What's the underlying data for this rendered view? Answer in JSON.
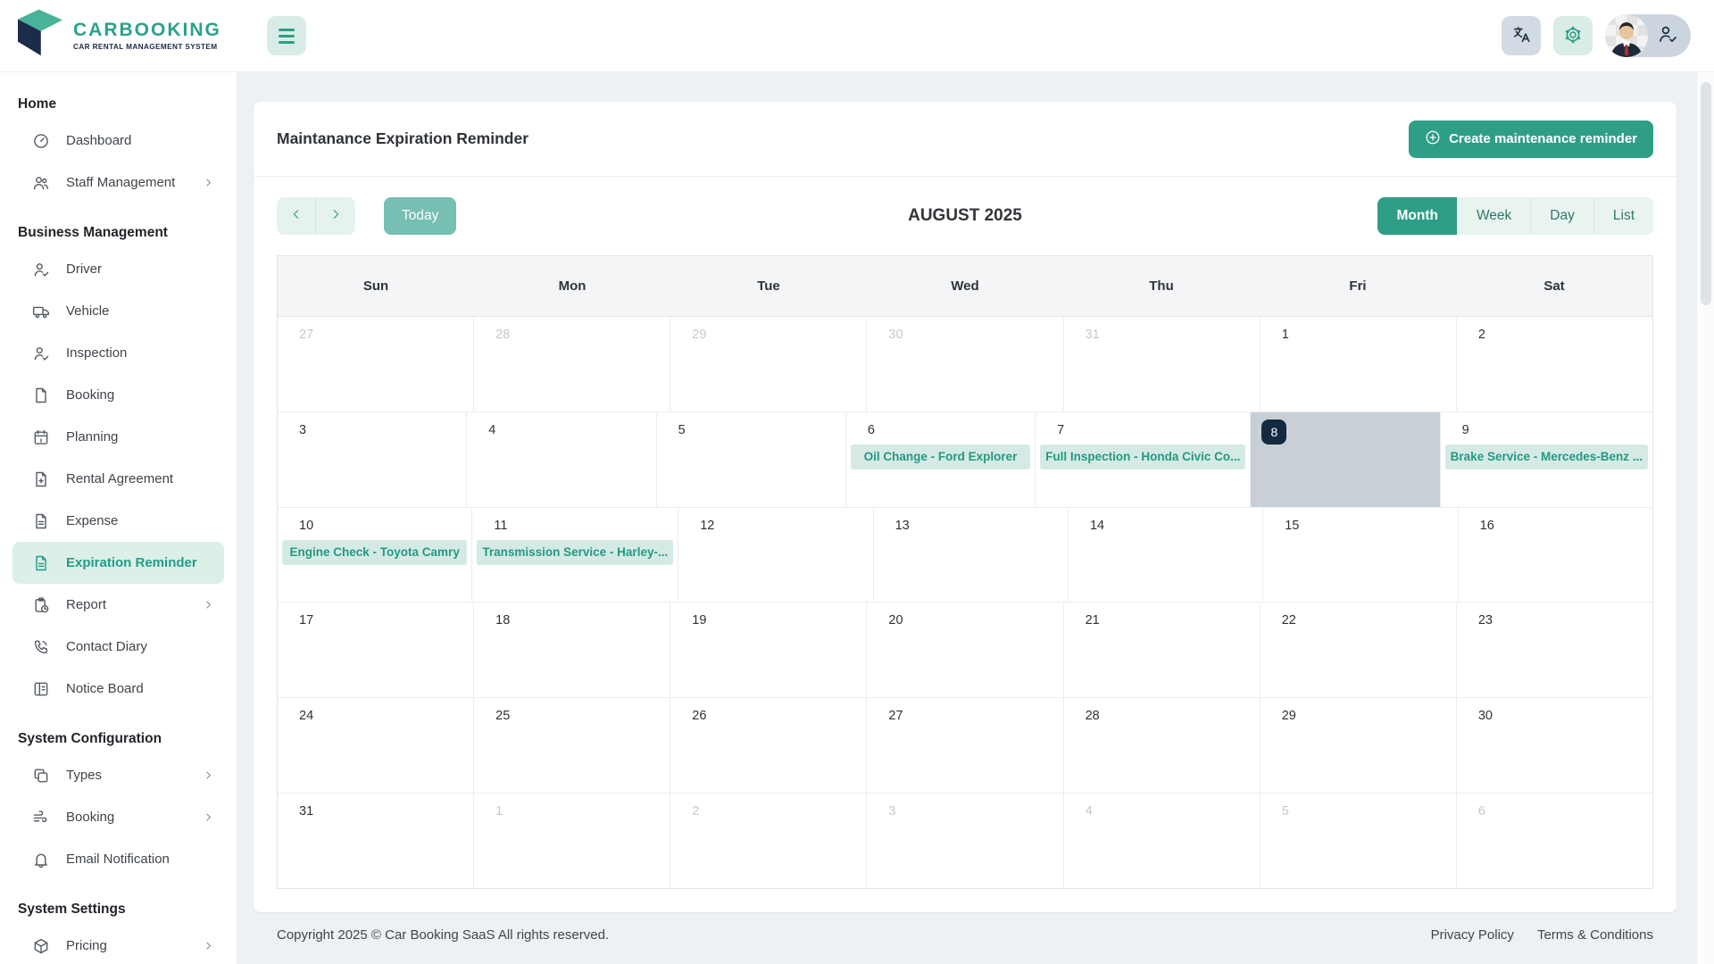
{
  "brand": {
    "name": "CARBOOKING",
    "tagline": "CAR RENTAL MANAGEMENT SYSTEM"
  },
  "topbar": {
    "icons": [
      "menu-icon",
      "translate-icon",
      "gear-icon",
      "avatar",
      "user-check-icon"
    ]
  },
  "sidebar": {
    "sections": [
      {
        "title": "Home",
        "items": [
          {
            "label": "Dashboard",
            "icon": "gauge-icon"
          },
          {
            "label": "Staff Management",
            "icon": "users-icon",
            "expandable": true
          }
        ]
      },
      {
        "title": "Business Management",
        "items": [
          {
            "label": "Driver",
            "icon": "user-check-icon"
          },
          {
            "label": "Vehicle",
            "icon": "truck-icon"
          },
          {
            "label": "Inspection",
            "icon": "user-check-icon"
          },
          {
            "label": "Booking",
            "icon": "file-icon"
          },
          {
            "label": "Planning",
            "icon": "calendar-icon"
          },
          {
            "label": "Rental Agreement",
            "icon": "file-plus-icon"
          },
          {
            "label": "Expense",
            "icon": "file-text-icon"
          },
          {
            "label": "Expiration Reminder",
            "icon": "file-text-icon",
            "active": true
          },
          {
            "label": "Report",
            "icon": "clipboard-clock-icon",
            "expandable": true
          },
          {
            "label": "Contact Diary",
            "icon": "phone-icon"
          },
          {
            "label": "Notice Board",
            "icon": "notice-board-icon"
          }
        ]
      },
      {
        "title": "System Configuration",
        "items": [
          {
            "label": "Types",
            "icon": "copy-icon",
            "expandable": true
          },
          {
            "label": "Booking",
            "icon": "flow-icon",
            "expandable": true
          },
          {
            "label": "Email Notification",
            "icon": "bell-icon"
          }
        ]
      },
      {
        "title": "System Settings",
        "items": [
          {
            "label": "Pricing",
            "icon": "package-icon",
            "expandable": true
          }
        ]
      }
    ]
  },
  "page": {
    "title": "Maintanance Expiration Reminder",
    "create_label": "Create maintenance reminder"
  },
  "calendar": {
    "title": "AUGUST 2025",
    "today_label": "Today",
    "views": [
      "Month",
      "Week",
      "Day",
      "List"
    ],
    "active_view": "Month",
    "day_headers": [
      "Sun",
      "Mon",
      "Tue",
      "Wed",
      "Thu",
      "Fri",
      "Sat"
    ],
    "selected_day": 8,
    "weeks": [
      [
        {
          "d": 27,
          "out": true
        },
        {
          "d": 28,
          "out": true
        },
        {
          "d": 29,
          "out": true
        },
        {
          "d": 30,
          "out": true
        },
        {
          "d": 31,
          "out": true
        },
        {
          "d": 1
        },
        {
          "d": 2
        }
      ],
      [
        {
          "d": 3
        },
        {
          "d": 4
        },
        {
          "d": 5
        },
        {
          "d": 6,
          "event": "Oil Change - Ford Explorer"
        },
        {
          "d": 7,
          "event": "Full Inspection - Honda Civic Co..."
        },
        {
          "d": 8,
          "selected": true
        },
        {
          "d": 9,
          "event": "Brake Service - Mercedes-Benz ..."
        }
      ],
      [
        {
          "d": 10,
          "event": "Engine Check - Toyota Camry"
        },
        {
          "d": 11,
          "event": "Transmission Service - Harley-..."
        },
        {
          "d": 12
        },
        {
          "d": 13
        },
        {
          "d": 14
        },
        {
          "d": 15
        },
        {
          "d": 16
        }
      ],
      [
        {
          "d": 17
        },
        {
          "d": 18
        },
        {
          "d": 19
        },
        {
          "d": 20
        },
        {
          "d": 21
        },
        {
          "d": 22
        },
        {
          "d": 23
        }
      ],
      [
        {
          "d": 24
        },
        {
          "d": 25
        },
        {
          "d": 26
        },
        {
          "d": 27
        },
        {
          "d": 28
        },
        {
          "d": 29
        },
        {
          "d": 30
        }
      ],
      [
        {
          "d": 31
        },
        {
          "d": 1,
          "out": true
        },
        {
          "d": 2,
          "out": true
        },
        {
          "d": 3,
          "out": true
        },
        {
          "d": 4,
          "out": true
        },
        {
          "d": 5,
          "out": true
        },
        {
          "d": 6,
          "out": true
        }
      ]
    ]
  },
  "footer": {
    "copyright": "Copyright 2025 © Car Booking SaaS All rights reserved.",
    "links": [
      "Privacy Policy",
      "Terms & Conditions"
    ]
  },
  "colors": {
    "accent": "#2e9e87",
    "accent_light": "#ddefe9",
    "event_bg": "#d5eae5",
    "event_text": "#229a81",
    "selected_cell_bg": "#c8cfd7",
    "selected_badge_bg": "#142a3e",
    "today_button_bg": "#76bfb2"
  }
}
